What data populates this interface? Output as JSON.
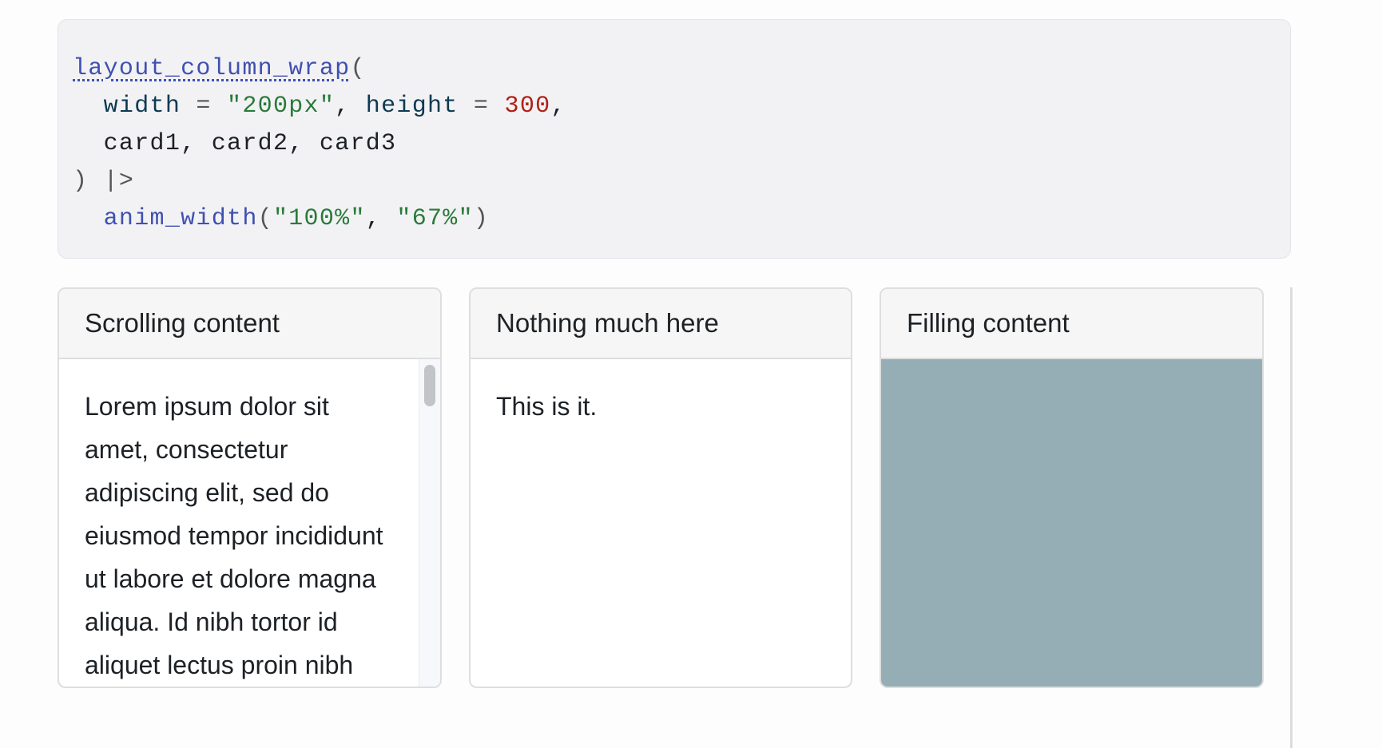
{
  "code": {
    "fn_name": "layout_column_wrap",
    "open_paren": "(",
    "line2": {
      "arg1": "width",
      "eq": " = ",
      "val1": "\"200px\"",
      "comma1": ", ",
      "arg2": "height",
      "eq2": " = ",
      "val2": "300",
      "comma2": ","
    },
    "line3": "card1, card2, card3",
    "line4": ") |>",
    "line5": {
      "fn": "anim_width",
      "open": "(",
      "val1": "\"100%\"",
      "comma": ", ",
      "val2": "\"67%\"",
      "close": ")"
    }
  },
  "cards": [
    {
      "title": "Scrolling content",
      "body": "Lorem ipsum dolor sit amet, consectetur adipiscing elit, sed do eiusmod tempor incididunt ut labore et dolore magna aliqua. Id nibh tortor id aliquet lectus proin nibh nisl condimentum."
    },
    {
      "title": "Nothing much here",
      "body": "This is it."
    },
    {
      "title": "Filling content",
      "fill_color": "#95adb4"
    }
  ]
}
